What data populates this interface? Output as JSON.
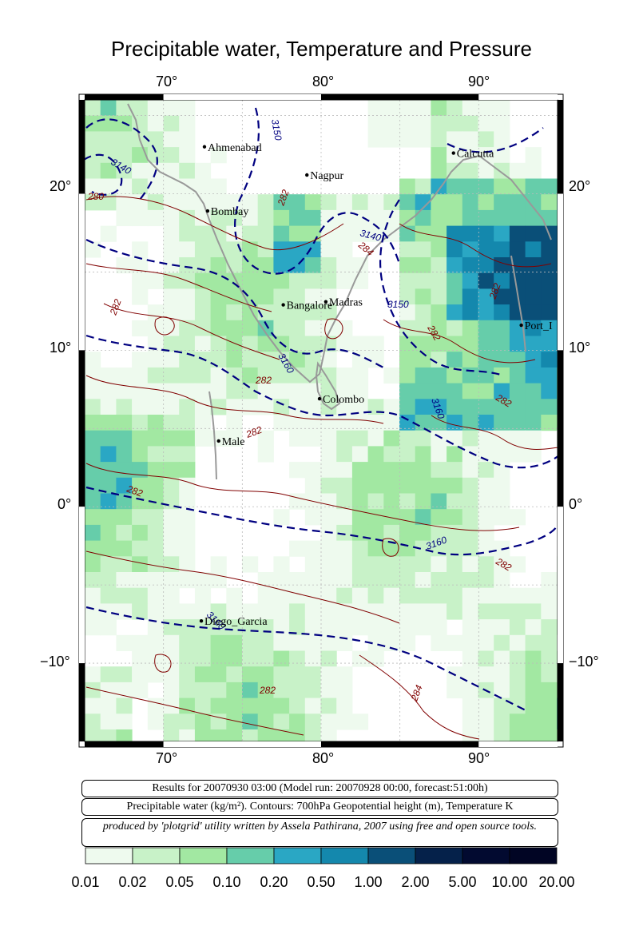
{
  "title": "Precipitable water, Temperature and Pressure",
  "axes": {
    "top_ticks": [
      "70°",
      "80°",
      "90°"
    ],
    "bottom_ticks": [
      "70°",
      "80°",
      "90°"
    ],
    "left_ticks": [
      "20°",
      "10°",
      "0°",
      "−10°"
    ],
    "right_ticks": [
      "20°",
      "10°",
      "0°",
      "−10°"
    ]
  },
  "cities": [
    {
      "name": "Ahmenabad",
      "lon": 72.6,
      "lat": 23.0
    },
    {
      "name": "Calcutta",
      "lon": 88.4,
      "lat": 22.6
    },
    {
      "name": "Nagpur",
      "lon": 79.1,
      "lat": 21.2
    },
    {
      "name": "Bombay",
      "lon": 72.8,
      "lat": 18.9
    },
    {
      "name": "Madras",
      "lon": 80.3,
      "lat": 13.1
    },
    {
      "name": "Bangalore",
      "lon": 77.6,
      "lat": 12.9
    },
    {
      "name": "Port_I",
      "lon": 92.7,
      "lat": 11.6
    },
    {
      "name": "Colombo",
      "lon": 79.9,
      "lat": 6.9
    },
    {
      "name": "Male",
      "lon": 73.5,
      "lat": 4.2
    },
    {
      "name": "Diego_Garcia",
      "lon": 72.4,
      "lat": -7.3
    }
  ],
  "contour_labels": [
    {
      "text": "3150",
      "kind": "height"
    },
    {
      "text": "3140",
      "kind": "height"
    },
    {
      "text": "3160",
      "kind": "height"
    },
    {
      "text": "282",
      "kind": "temperature"
    },
    {
      "text": "284",
      "kind": "temperature"
    },
    {
      "text": "280",
      "kind": "temperature"
    }
  ],
  "info": {
    "line1": "Results for 20070930 03:00 (Model run: 20070928 00:00, forecast:51:00h)",
    "line2": "Precipitable water (kg/m²).  Contours: 700hPa Geopotential height (m), Temperature K",
    "line3": "produced by 'plotgrid' utility written by Assela Pathirana, 2007 using free and open source tools."
  },
  "colorbar": {
    "labels": [
      "0.01",
      "0.02",
      "0.05",
      "0.10",
      "0.20",
      "0.50",
      "1.00",
      "2.00",
      "5.00",
      "10.00",
      "20.00"
    ],
    "colors": [
      "#eefaee",
      "#c8f2c8",
      "#a2e8a2",
      "#66cdaa",
      "#2aa7c4",
      "#1488ad",
      "#0a4f78",
      "#05214a",
      "#020a30",
      "#010524"
    ]
  },
  "colors": {
    "height_contour": "#000080",
    "temperature_contour": "#800000",
    "coastline": "#999999",
    "grid": "#bbbbbb"
  }
}
